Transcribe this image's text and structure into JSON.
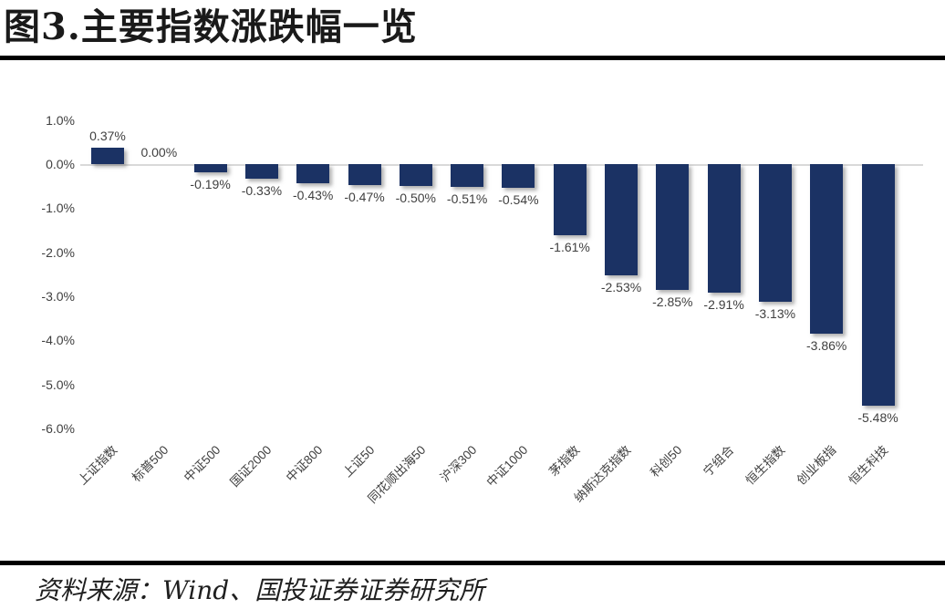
{
  "page": {
    "title": "图3.主要指数涨跌幅一览",
    "source_note": "资料来源：Wind、国投证券证券研究所"
  },
  "chart_data": {
    "type": "bar",
    "title": "图3.主要指数涨跌幅一览",
    "xlabel": "",
    "ylabel": "",
    "categories": [
      "上证指数",
      "标普500",
      "中证500",
      "国证2000",
      "中证800",
      "上证50",
      "同花顺出海50",
      "沪深300",
      "中证1000",
      "茅指数",
      "纳斯达克指数",
      "科创50",
      "宁组合",
      "恒生指数",
      "创业板指",
      "恒生科技"
    ],
    "values": [
      0.37,
      0.0,
      -0.19,
      -0.33,
      -0.43,
      -0.47,
      -0.5,
      -0.51,
      -0.54,
      -1.61,
      -2.53,
      -2.85,
      -2.91,
      -3.13,
      -3.86,
      -5.48
    ],
    "data_labels": [
      "0.37%",
      "0.00%",
      "-0.19%",
      "-0.33%",
      "-0.43%",
      "-0.47%",
      "-0.50%",
      "-0.51%",
      "-0.54%",
      "-1.61%",
      "-2.53%",
      "-2.85%",
      "-2.91%",
      "-3.13%",
      "-3.86%",
      "-5.48%"
    ],
    "y_ticks": [
      "1.0%",
      "0.0%",
      "-1.0%",
      "-2.0%",
      "-3.0%",
      "-4.0%",
      "-5.0%",
      "-6.0%"
    ],
    "ylim": [
      -6.0,
      1.0
    ],
    "grid": false,
    "legend": "none",
    "bar_color": "#1b3264",
    "label_color": "#404040",
    "axis_line_color": "#d9d9d9"
  }
}
